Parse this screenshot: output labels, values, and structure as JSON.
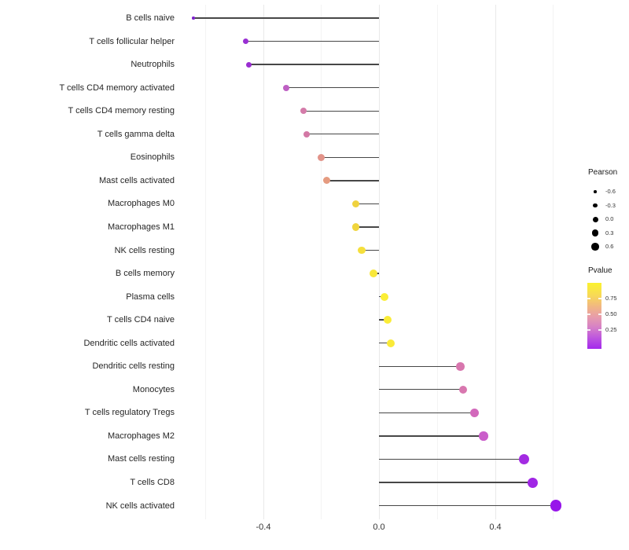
{
  "chart_data": {
    "type": "scatter",
    "subtype": "lollipop",
    "title": "",
    "xlabel": "",
    "ylabel": "",
    "xlim": [
      -0.66,
      0.64
    ],
    "x_tick_labels": [
      "-0.4",
      "0.0",
      "0.4"
    ],
    "x_tick_values": [
      -0.4,
      0.0,
      0.4
    ],
    "x_gridlines_major": [
      -0.4,
      0.0,
      0.4
    ],
    "x_gridlines_minor": [
      -0.6,
      -0.2,
      0.2,
      0.6
    ],
    "grid": "vertical-only",
    "size_encoding": "Pearson",
    "color_encoding": "Pvalue",
    "stem_color": "#474747",
    "points": [
      {
        "label": "B cells naive",
        "pearson": -0.64,
        "color": "#7e22cc",
        "size": 3.5
      },
      {
        "label": "T cells follicular helper",
        "pearson": -0.46,
        "color": "#992fd3",
        "size": 7
      },
      {
        "label": "Neutrophils",
        "pearson": -0.45,
        "color": "#9a2dd1",
        "size": 7
      },
      {
        "label": "T cells CD4 memory activated",
        "pearson": -0.32,
        "color": "#be60c3",
        "size": 8
      },
      {
        "label": "T cells CD4 memory resting",
        "pearson": -0.26,
        "color": "#d47ba9",
        "size": 8.5
      },
      {
        "label": "T cells gamma delta",
        "pearson": -0.25,
        "color": "#d378a5",
        "size": 8.5
      },
      {
        "label": "Eosinophils",
        "pearson": -0.2,
        "color": "#e29389",
        "size": 9
      },
      {
        "label": "Mast cells activated",
        "pearson": -0.18,
        "color": "#e59b80",
        "size": 9
      },
      {
        "label": "Macrophages M0",
        "pearson": -0.08,
        "color": "#efd23e",
        "size": 9.5
      },
      {
        "label": "Macrophages M1",
        "pearson": -0.08,
        "color": "#f0d53d",
        "size": 9.5
      },
      {
        "label": "NK cells resting",
        "pearson": -0.06,
        "color": "#f5df3c",
        "size": 9.5
      },
      {
        "label": "B cells memory",
        "pearson": -0.02,
        "color": "#f8e73a",
        "size": 10
      },
      {
        "label": "Plasma cells",
        "pearson": 0.02,
        "color": "#fbee36",
        "size": 10
      },
      {
        "label": "T cells CD4 naive",
        "pearson": 0.03,
        "color": "#faec37",
        "size": 10
      },
      {
        "label": "Dendritic cells activated",
        "pearson": 0.04,
        "color": "#faea38",
        "size": 10
      },
      {
        "label": "Dendritic cells resting",
        "pearson": 0.28,
        "color": "#d876ae",
        "size": 10.5
      },
      {
        "label": "Monocytes",
        "pearson": 0.29,
        "color": "#d877af",
        "size": 10.5
      },
      {
        "label": "T cells regulatory Tregs",
        "pearson": 0.33,
        "color": "#d268bb",
        "size": 11
      },
      {
        "label": "Macrophages M2",
        "pearson": 0.36,
        "color": "#ca5eca",
        "size": 11.5
      },
      {
        "label": "Mast cells resting",
        "pearson": 0.5,
        "color": "#a32be2",
        "size": 13
      },
      {
        "label": "T cells CD8",
        "pearson": 0.53,
        "color": "#a026e5",
        "size": 13
      },
      {
        "label": "NK cells activated",
        "pearson": 0.61,
        "color": "#9715ea",
        "size": 14.5
      }
    ],
    "legend": {
      "position": "right",
      "pearson": {
        "title": "Pearson",
        "items": [
          {
            "label": "-0.6",
            "size": 3.5
          },
          {
            "label": "-0.3",
            "size": 5.5
          },
          {
            "label": "0.0",
            "size": 7
          },
          {
            "label": "0.3",
            "size": 8.5
          },
          {
            "label": "0.6",
            "size": 9.5
          }
        ]
      },
      "pvalue": {
        "title": "Pvalue",
        "ticks": [
          "0.75",
          "0.50",
          "0.25"
        ],
        "gradient_top_color": "#faf22e",
        "gradient_mid_color": "#e79cac",
        "gradient_bottom_color": "#a428ec"
      }
    }
  }
}
